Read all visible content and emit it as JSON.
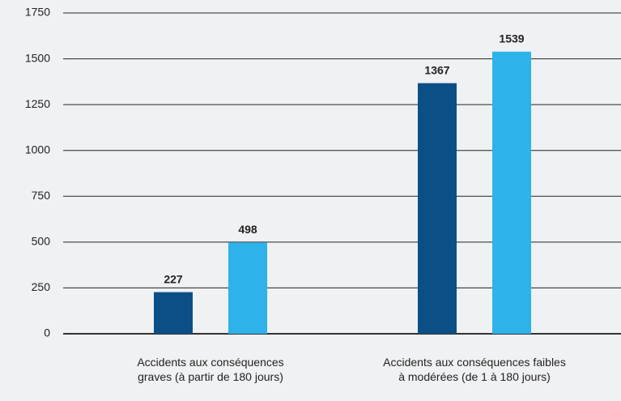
{
  "chart_data": {
    "type": "bar",
    "categories": [
      "Accidents aux conséquences\ngraves (à partir de 180 jours)",
      "Accidents aux conséquences faibles\nà modérées (de 1 à 180 jours)"
    ],
    "series": [
      {
        "color": "#0b4f87",
        "values": [
          227,
          1367
        ]
      },
      {
        "color": "#2db3ea",
        "values": [
          498,
          1539
        ]
      }
    ],
    "ylim": [
      0,
      1750
    ],
    "yticks": [
      0,
      250,
      500,
      750,
      1000,
      1250,
      1500,
      1750
    ],
    "grid": true
  }
}
